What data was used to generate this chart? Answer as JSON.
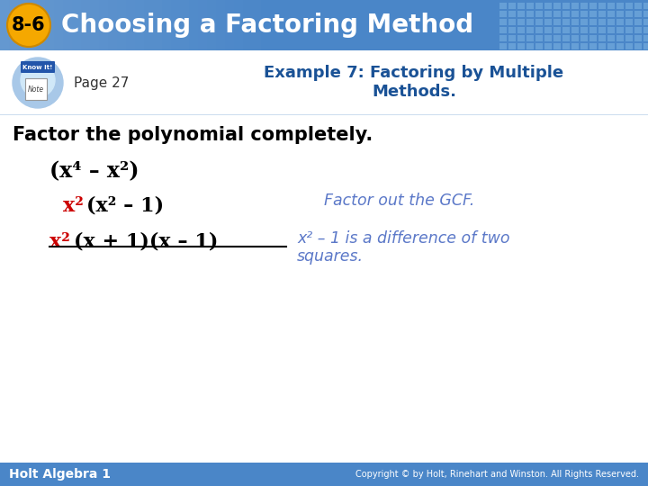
{
  "title_badge": "8-6",
  "title_text": "Choosing a Factoring Method",
  "header_bg_color": "#4a86c8",
  "header_bg_gradient": "#6aaae0",
  "badge_color": "#f5a800",
  "badge_text_color": "#000000",
  "page_label": "Page 27",
  "example_title_line1": "Example 7: Factoring by Multiple",
  "example_title_line2": "Methods.",
  "example_title_color": "#1a5296",
  "body_bg_color": "#ffffff",
  "intro_text": "Factor the polynomial completely.",
  "intro_color": "#000000",
  "line1_text": "(x⁴ – x²)",
  "line1_color": "#000000",
  "line2_red": "x²",
  "line2_black": "(x² – 1)",
  "line2_red_color": "#cc0000",
  "line2_black_color": "#000000",
  "line2_right": "Factor out the GCF.",
  "line2_right_color": "#5b78c8",
  "line3_red": "x²",
  "line3_black": "(x + 1)(x – 1)",
  "line3_red_color": "#cc0000",
  "line3_black_color": "#000000",
  "line3_right_line1": "x² – 1 is a difference of two",
  "line3_right_line2": "squares.",
  "line3_right_color": "#5b78c8",
  "footer_bg_color": "#4a86c8",
  "footer_text_left": "Holt Algebra 1",
  "footer_text_right": "Copyright © by Holt, Rinehart and Winston. All Rights Reserved.",
  "footer_text_color": "#ffffff",
  "grid_color": "#5a96d8",
  "subheader_bg": "#ddeeff"
}
